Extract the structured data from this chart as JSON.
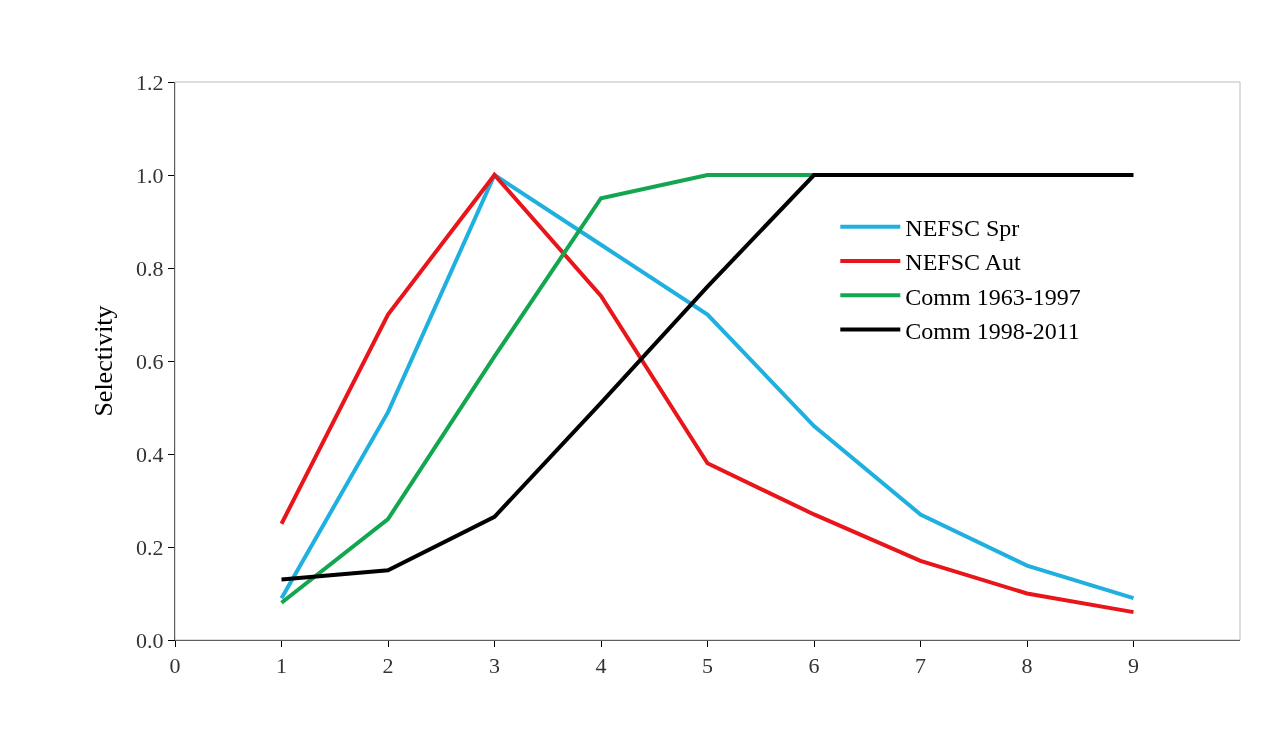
{
  "chart_data": {
    "type": "line",
    "ylabel": "Selectivity",
    "x": [
      1,
      2,
      3,
      4,
      5,
      6,
      7,
      8,
      9
    ],
    "series": [
      {
        "name": "NEFSC Spr",
        "color": "#1fb0e0",
        "values": [
          0.09,
          0.49,
          1.0,
          0.85,
          0.7,
          0.46,
          0.27,
          0.16,
          0.09
        ]
      },
      {
        "name": "NEFSC Aut",
        "color": "#e8161b",
        "values": [
          0.25,
          0.7,
          1.0,
          0.74,
          0.38,
          0.27,
          0.17,
          0.1,
          0.06
        ]
      },
      {
        "name": "Comm 1963-1997",
        "color": "#12a650",
        "values": [
          0.08,
          0.26,
          0.61,
          0.95,
          1.0,
          1.0,
          null,
          null,
          null
        ]
      },
      {
        "name": "Comm 1998-2011",
        "color": "#000000",
        "values": [
          0.13,
          0.15,
          0.265,
          0.51,
          0.76,
          1.0,
          1.0,
          1.0,
          1.0
        ]
      }
    ],
    "xlim": [
      0,
      10
    ],
    "xticks": [
      0,
      1,
      2,
      3,
      4,
      5,
      6,
      7,
      8,
      9
    ],
    "ylim": [
      0,
      1.2
    ],
    "yticks": [
      {
        "value": 0,
        "label": "0.0"
      },
      {
        "value": 0.2,
        "label": "0.2"
      },
      {
        "value": 0.4,
        "label": "0.4"
      },
      {
        "value": 0.6,
        "label": "0.6"
      },
      {
        "value": 0.8,
        "label": "0.8"
      },
      {
        "value": 1.0,
        "label": "1.0"
      },
      {
        "value": 1.2,
        "label": "1.2"
      }
    ],
    "legend": "right",
    "marker": "none",
    "line_style": "solid"
  }
}
